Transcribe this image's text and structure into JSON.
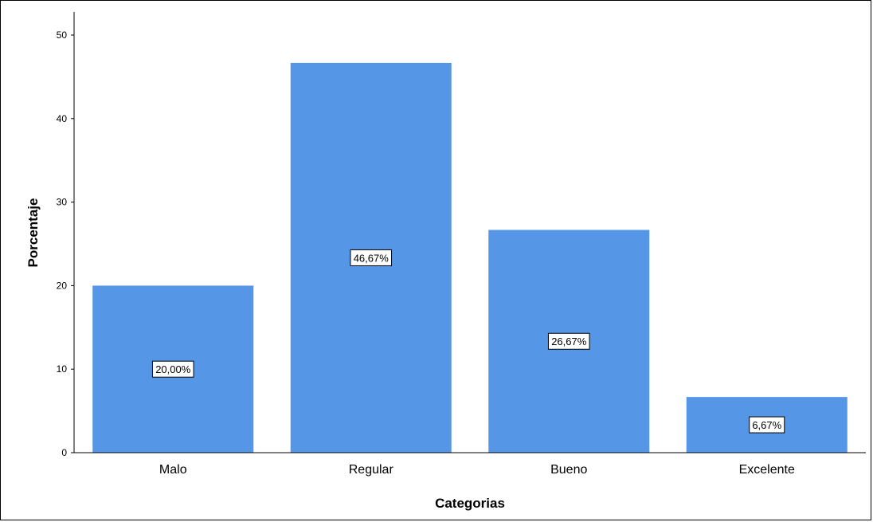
{
  "chart_data": {
    "type": "bar",
    "categories": [
      "Malo",
      "Regular",
      "Bueno",
      "Excelente"
    ],
    "values": [
      20.0,
      46.67,
      26.67,
      6.67
    ],
    "data_labels": [
      "20,00%",
      "46,67%",
      "26,67%",
      "6,67%"
    ],
    "title": "",
    "xlabel": "Categorias",
    "ylabel": "Porcentaje",
    "ylim": [
      0,
      50
    ],
    "yticks": [
      0,
      10,
      20,
      30,
      40,
      50
    ],
    "grid": false,
    "colors": {
      "bar": "#5596E6",
      "label_box_border": "#000000",
      "label_box_fill": "#FFFFFF"
    }
  }
}
